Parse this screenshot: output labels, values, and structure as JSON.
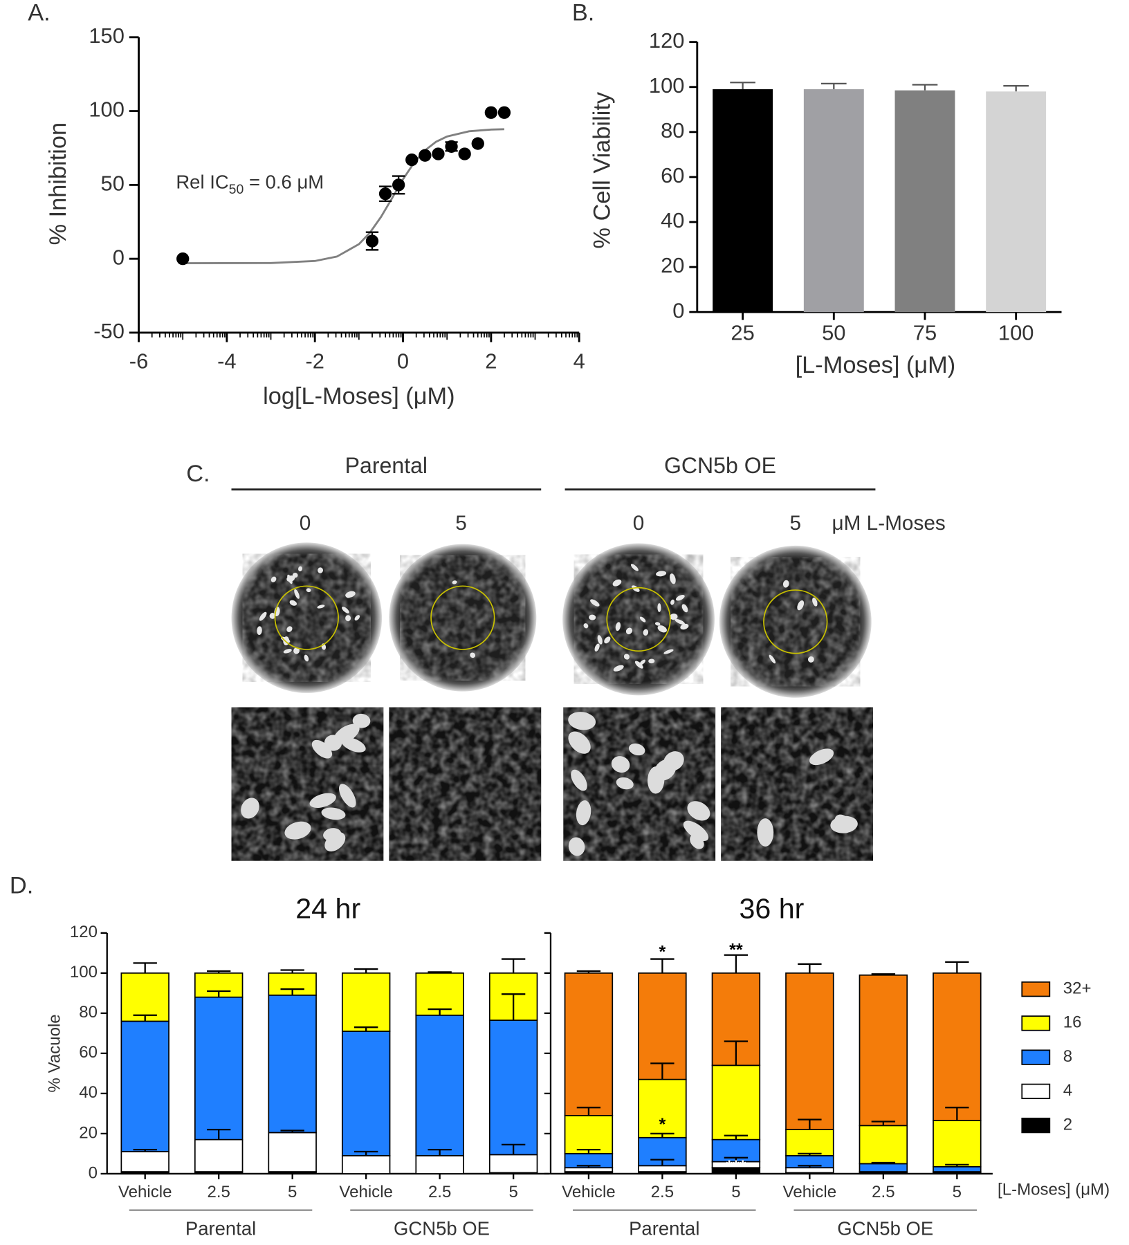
{
  "chart_data": [
    {
      "type": "scatter",
      "panel_label": "A.",
      "xlabel": "log[L-Moses] (μM)",
      "ylabel": "% Inhibition",
      "annotation": [
        "Rel  IC",
        "50",
        " = 0.6 μM"
      ],
      "x": [
        -5,
        -0.7,
        -0.4,
        -0.1,
        0.2,
        0.5,
        0.8,
        1.1,
        1.4,
        1.7,
        2.0,
        2.3
      ],
      "y": [
        0,
        12,
        44,
        50,
        67,
        70,
        71,
        76,
        71,
        78,
        99,
        99
      ],
      "errors": [
        null,
        6,
        5,
        6,
        null,
        null,
        null,
        3,
        null,
        null,
        null,
        null
      ],
      "color": "#000000",
      "fit": {
        "color": "#808080",
        "x": [
          -5,
          -3,
          -2,
          -1.5,
          -1,
          -0.75,
          -0.5,
          -0.25,
          0,
          0.25,
          0.5,
          0.75,
          1,
          1.5,
          2,
          2.3
        ],
        "y": [
          -3,
          -2.9,
          -1.5,
          1.5,
          9.9,
          17.7,
          28.3,
          40.9,
          53.8,
          65,
          73.4,
          79.2,
          82.8,
          86.3,
          87.5,
          87.7
        ]
      },
      "xlim": [
        -6,
        4
      ],
      "xticks": [
        -6,
        -4,
        -2,
        0,
        2,
        4
      ],
      "ylim": [
        -50,
        150
      ],
      "yticks": [
        -50,
        0,
        50,
        100,
        150
      ]
    },
    {
      "type": "bar",
      "panel_label": "B.",
      "xlabel": "[L-Moses] (μM)",
      "ylabel": "% Cell  Viability",
      "categories": [
        "25",
        "50",
        "75",
        "100"
      ],
      "values": [
        99,
        99,
        98.5,
        98
      ],
      "errors": [
        3,
        2.5,
        2.5,
        2.5
      ],
      "colors": [
        "#000000",
        "#a0a0a4",
        "#808080",
        "#d4d4d4"
      ],
      "ylim": [
        0,
        120
      ],
      "yticks": [
        0,
        20,
        40,
        60,
        80,
        100,
        120
      ]
    },
    {
      "type": "stacked_bar",
      "panel_label": "D.",
      "ylabel": "% Vacuole",
      "xlabel": "[L-Moses] (μM)",
      "panels": [
        {
          "title": "24 hr"
        },
        {
          "title": "36 hr"
        }
      ],
      "categories": [
        "Vehicle",
        "2.5",
        "5",
        "Vehicle",
        "2.5",
        "5",
        "Vehicle",
        "2.5",
        "5",
        "Vehicle",
        "2.5",
        "5"
      ],
      "groups": [
        {
          "name": "Parental",
          "first": 0,
          "last": 2
        },
        {
          "name": "GCN5b OE",
          "first": 3,
          "last": 5
        },
        {
          "name": "Parental",
          "first": 6,
          "last": 8
        },
        {
          "name": "GCN5b OE",
          "first": 9,
          "last": 11
        }
      ],
      "series": [
        {
          "name": "2",
          "color": "#000000",
          "values": [
            1,
            1,
            1,
            0,
            0,
            0.5,
            1,
            1,
            3,
            0.5,
            0.5,
            0.5
          ],
          "errors": [
            null,
            null,
            null,
            null,
            null,
            null,
            null,
            null,
            null,
            null,
            null,
            null
          ]
        },
        {
          "name": "4",
          "color": "#ffffff",
          "values": [
            10,
            16,
            19.5,
            9,
            9,
            9,
            2,
            3,
            3,
            2.5,
            0.5,
            0.5
          ],
          "errors": [
            1,
            5,
            1,
            2,
            3,
            5,
            1,
            3,
            2,
            1,
            null,
            null
          ]
        },
        {
          "name": "8",
          "color": "#1f7fff",
          "values": [
            65,
            71,
            68.5,
            62,
            70,
            67,
            7,
            14,
            11,
            6,
            4,
            2.5
          ],
          "errors": [
            3,
            3,
            3,
            2,
            3,
            13,
            2,
            2,
            2,
            1,
            0.5,
            1
          ]
        },
        {
          "name": "16",
          "color": "#ffff00",
          "values": [
            24,
            12,
            11,
            29,
            21,
            23.5,
            19,
            29,
            37,
            13,
            19,
            23
          ],
          "errors": [
            5,
            1,
            1.5,
            2,
            0.5,
            7,
            4,
            8,
            12,
            5,
            2,
            6.5
          ]
        },
        {
          "name": "32+",
          "color": "#f47c0a",
          "values": [
            0,
            0,
            0,
            0,
            0,
            0,
            71,
            53,
            46,
            78,
            75,
            73.5
          ],
          "errors": [
            null,
            null,
            null,
            null,
            null,
            null,
            1,
            7,
            9,
            4.5,
            0.5,
            5.5
          ]
        }
      ],
      "annotations": [
        {
          "text": "*",
          "category": 7,
          "y": 110,
          "color": "#000000"
        },
        {
          "text": "**",
          "category": 8,
          "y": 111,
          "color": "#000000"
        },
        {
          "text": "*",
          "category": 7,
          "y": 24,
          "color": "#000000"
        },
        {
          "text": "***",
          "category": 8,
          "y": 3,
          "color": "#ffffff"
        }
      ],
      "ylim": [
        0,
        120
      ],
      "yticks": [
        0,
        20,
        40,
        60,
        80,
        100,
        120
      ]
    }
  ],
  "panel_c": {
    "panel_label": "C.",
    "groups": [
      "Parental",
      "GCN5b OE"
    ],
    "doses": [
      "0",
      "5",
      "0",
      "5"
    ],
    "dose_unit": "μM L-Moses"
  }
}
